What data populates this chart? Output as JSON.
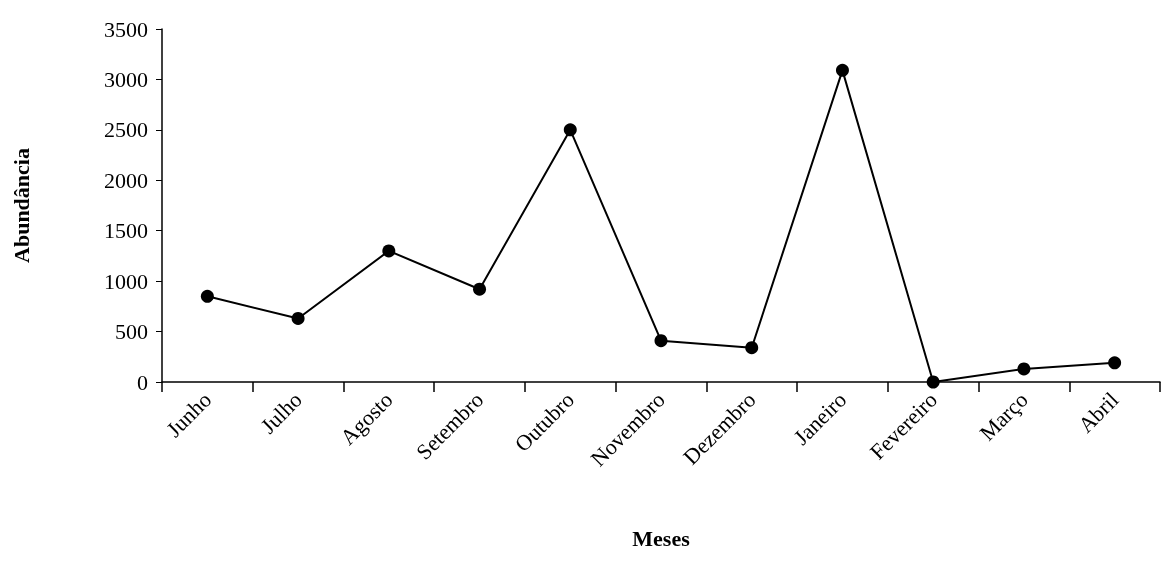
{
  "chart_data": {
    "type": "line",
    "xlabel": "Meses",
    "ylabel": "Abundância",
    "categories": [
      "Junho",
      "Julho",
      "Agosto",
      "Setembro",
      "Outubro",
      "Novembro",
      "Dezembro",
      "Janeiro",
      "Fevereiro",
      "Março",
      "Abril"
    ],
    "series": [
      {
        "color": "#000000",
        "values": [
          850,
          630,
          1300,
          920,
          2500,
          410,
          340,
          3090,
          0,
          130,
          190
        ]
      }
    ],
    "ylim": [
      0,
      3500
    ],
    "yticks": [
      0,
      500,
      1000,
      1500,
      2000,
      2500,
      3000,
      3500
    ],
    "grid": false,
    "marker": "circle",
    "line_style": "solid"
  }
}
